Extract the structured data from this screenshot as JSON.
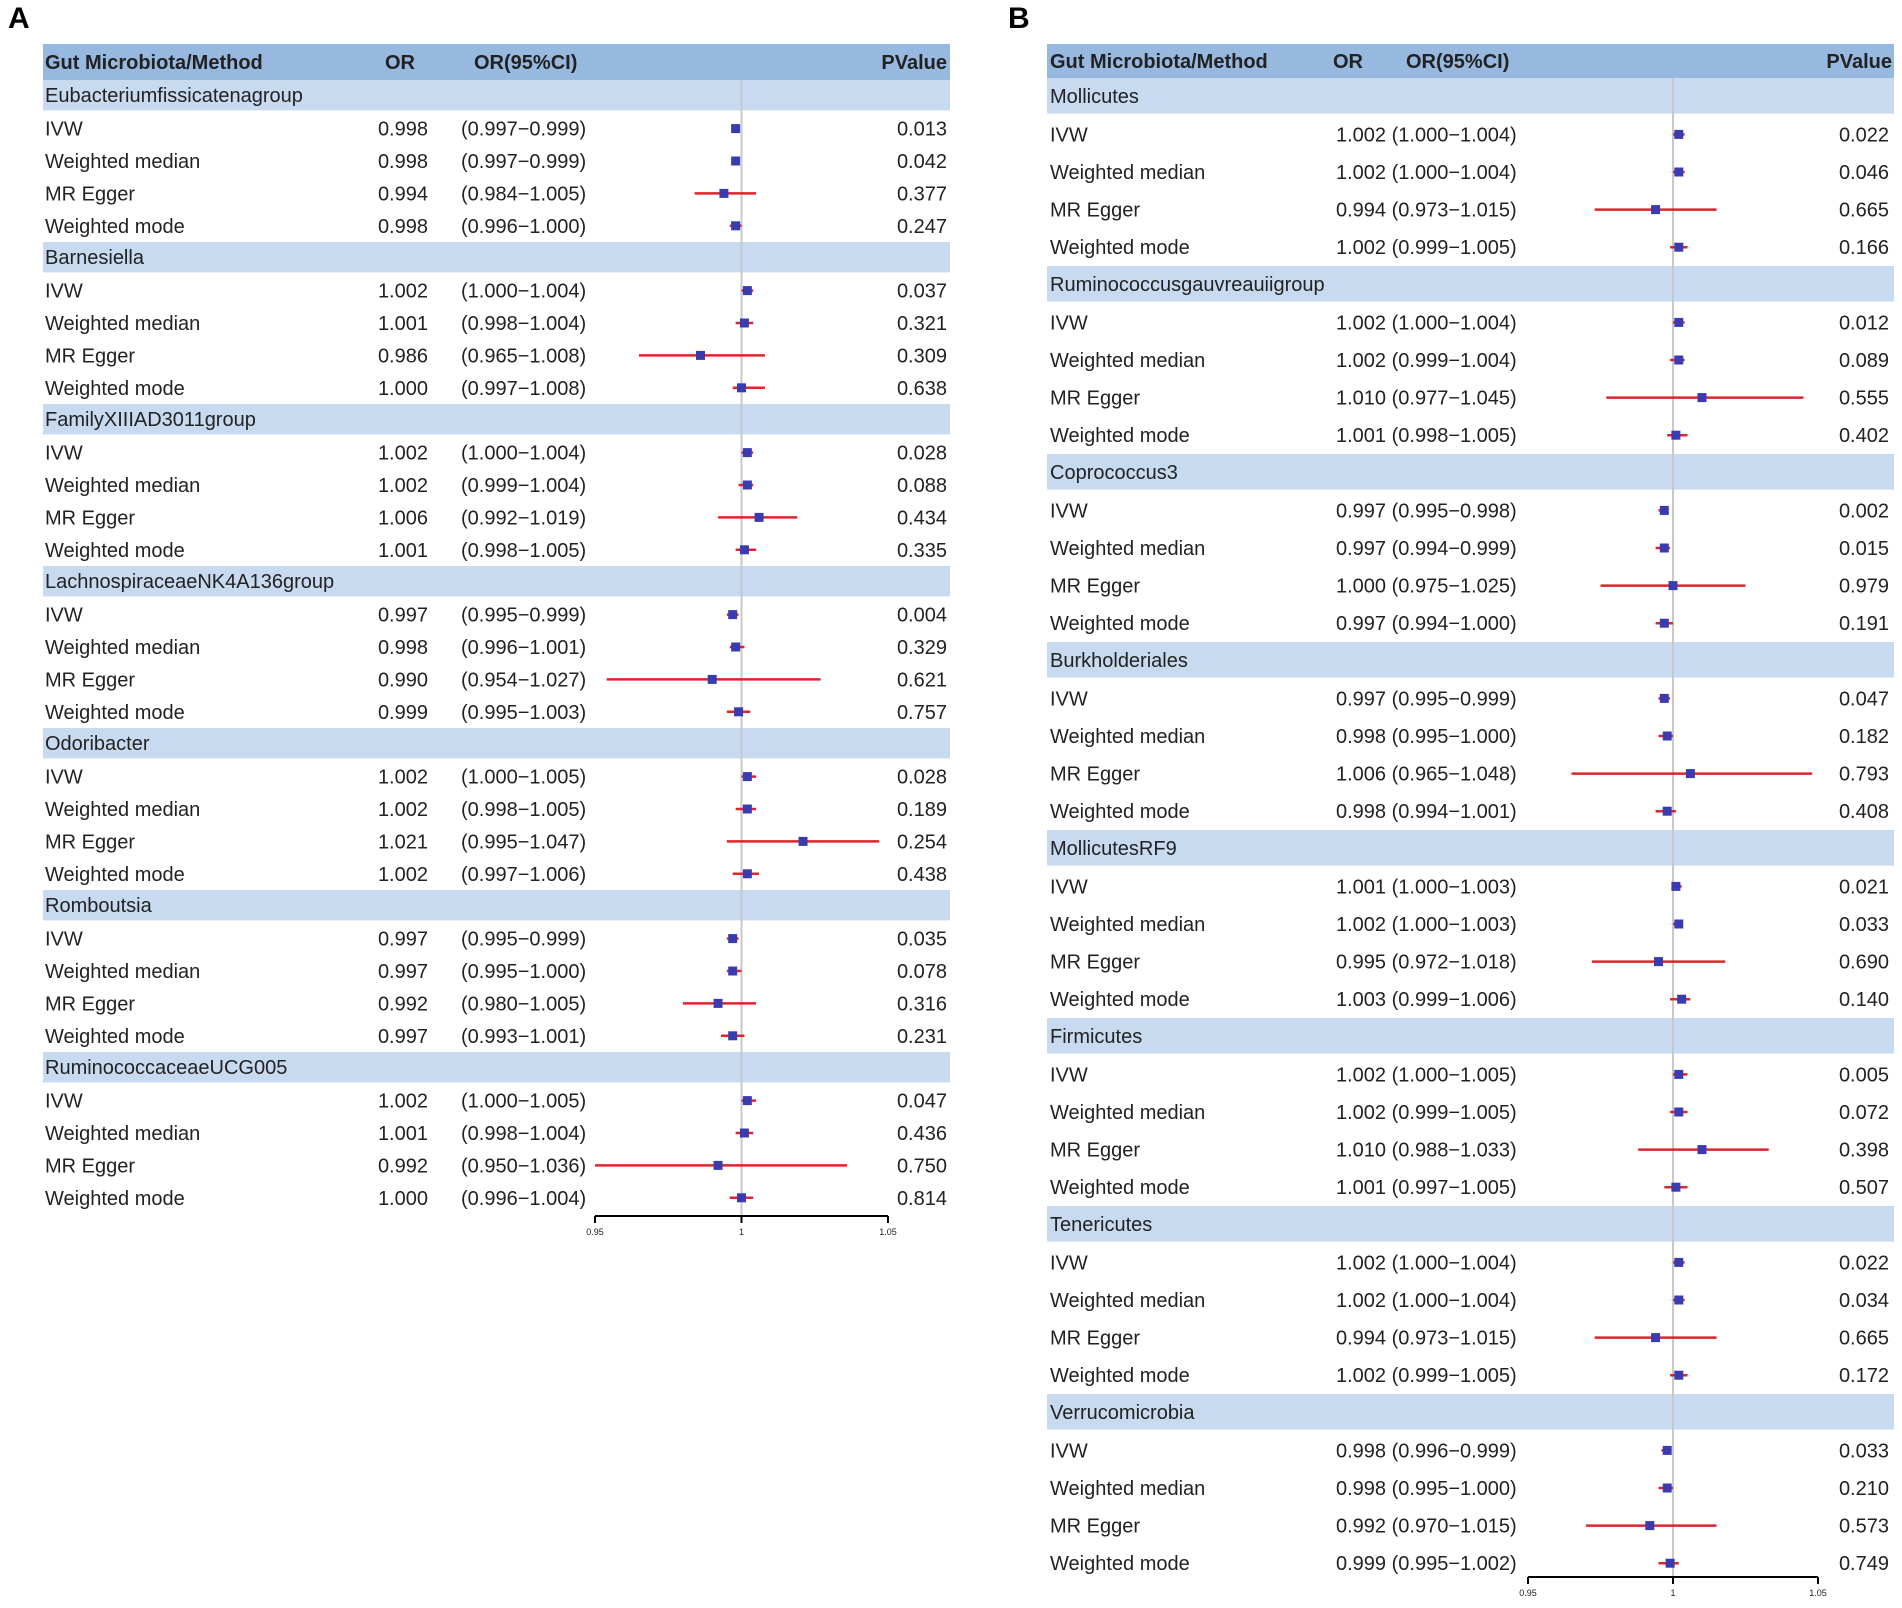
{
  "colors": {
    "header_bg": "#97b9e0",
    "group_bg": "#c8daf0",
    "ci_line": "#e0232c",
    "point": "#3b3bb0",
    "ref_line": "#c8c8c8",
    "axis": "#000000"
  },
  "chart_data": [
    {
      "type": "forest",
      "panel_label": "A",
      "columns": {
        "name": "Gut Microbiota/Method",
        "or": "OR",
        "ci": "OR(95%CI)",
        "p": "PValue"
      },
      "ci_style": "paren",
      "xlim": [
        0.95,
        1.05
      ],
      "ref_value": 1,
      "ticks": [
        {
          "value": 0.95,
          "label": "0.95"
        },
        {
          "value": 1,
          "label": "1"
        },
        {
          "value": 1.05,
          "label": "1.05"
        }
      ],
      "groups": [
        {
          "name": "Eubacteriumfissicatenagroup",
          "rows": [
            {
              "method": "IVW",
              "or": 0.998,
              "lo": 0.997,
              "hi": 0.999,
              "or_text": "0.998",
              "ci_text": "(0.997−0.999)",
              "p": "0.013"
            },
            {
              "method": "Weighted median",
              "or": 0.998,
              "lo": 0.997,
              "hi": 0.999,
              "or_text": "0.998",
              "ci_text": "(0.997−0.999)",
              "p": "0.042"
            },
            {
              "method": "MR Egger",
              "or": 0.994,
              "lo": 0.984,
              "hi": 1.005,
              "or_text": "0.994",
              "ci_text": "(0.984−1.005)",
              "p": "0.377"
            },
            {
              "method": "Weighted mode",
              "or": 0.998,
              "lo": 0.996,
              "hi": 1.0,
              "or_text": "0.998",
              "ci_text": "(0.996−1.000)",
              "p": "0.247"
            }
          ]
        },
        {
          "name": "Barnesiella",
          "rows": [
            {
              "method": "IVW",
              "or": 1.002,
              "lo": 1.0,
              "hi": 1.004,
              "or_text": "1.002",
              "ci_text": "(1.000−1.004)",
              "p": "0.037"
            },
            {
              "method": "Weighted median",
              "or": 1.001,
              "lo": 0.998,
              "hi": 1.004,
              "or_text": "1.001",
              "ci_text": "(0.998−1.004)",
              "p": "0.321"
            },
            {
              "method": "MR Egger",
              "or": 0.986,
              "lo": 0.965,
              "hi": 1.008,
              "or_text": "0.986",
              "ci_text": "(0.965−1.008)",
              "p": "0.309"
            },
            {
              "method": "Weighted mode",
              "or": 1.0,
              "lo": 0.997,
              "hi": 1.008,
              "or_text": "1.000",
              "ci_text": "(0.997−1.008)",
              "p": "0.638"
            }
          ]
        },
        {
          "name": "FamilyXIIIAD3011group",
          "rows": [
            {
              "method": "IVW",
              "or": 1.002,
              "lo": 1.0,
              "hi": 1.004,
              "or_text": "1.002",
              "ci_text": "(1.000−1.004)",
              "p": "0.028"
            },
            {
              "method": "Weighted median",
              "or": 1.002,
              "lo": 0.999,
              "hi": 1.004,
              "or_text": "1.002",
              "ci_text": "(0.999−1.004)",
              "p": "0.088"
            },
            {
              "method": "MR Egger",
              "or": 1.006,
              "lo": 0.992,
              "hi": 1.019,
              "or_text": "1.006",
              "ci_text": "(0.992−1.019)",
              "p": "0.434"
            },
            {
              "method": "Weighted mode",
              "or": 1.001,
              "lo": 0.998,
              "hi": 1.005,
              "or_text": "1.001",
              "ci_text": "(0.998−1.005)",
              "p": "0.335"
            }
          ]
        },
        {
          "name": "LachnospiraceaeNK4A136group",
          "rows": [
            {
              "method": "IVW",
              "or": 0.997,
              "lo": 0.995,
              "hi": 0.999,
              "or_text": "0.997",
              "ci_text": "(0.995−0.999)",
              "p": "0.004"
            },
            {
              "method": "Weighted median",
              "or": 0.998,
              "lo": 0.996,
              "hi": 1.001,
              "or_text": "0.998",
              "ci_text": "(0.996−1.001)",
              "p": "0.329"
            },
            {
              "method": "MR Egger",
              "or": 0.99,
              "lo": 0.954,
              "hi": 1.027,
              "or_text": "0.990",
              "ci_text": "(0.954−1.027)",
              "p": "0.621"
            },
            {
              "method": "Weighted mode",
              "or": 0.999,
              "lo": 0.995,
              "hi": 1.003,
              "or_text": "0.999",
              "ci_text": "(0.995−1.003)",
              "p": "0.757"
            }
          ]
        },
        {
          "name": "Odoribacter",
          "rows": [
            {
              "method": "IVW",
              "or": 1.002,
              "lo": 1.0,
              "hi": 1.005,
              "or_text": "1.002",
              "ci_text": "(1.000−1.005)",
              "p": "0.028"
            },
            {
              "method": "Weighted median",
              "or": 1.002,
              "lo": 0.998,
              "hi": 1.005,
              "or_text": "1.002",
              "ci_text": "(0.998−1.005)",
              "p": "0.189"
            },
            {
              "method": "MR Egger",
              "or": 1.021,
              "lo": 0.995,
              "hi": 1.047,
              "or_text": "1.021",
              "ci_text": "(0.995−1.047)",
              "p": "0.254"
            },
            {
              "method": "Weighted mode",
              "or": 1.002,
              "lo": 0.997,
              "hi": 1.006,
              "or_text": "1.002",
              "ci_text": "(0.997−1.006)",
              "p": "0.438"
            }
          ]
        },
        {
          "name": "Romboutsia",
          "rows": [
            {
              "method": "IVW",
              "or": 0.997,
              "lo": 0.995,
              "hi": 0.999,
              "or_text": "0.997",
              "ci_text": "(0.995−0.999)",
              "p": "0.035"
            },
            {
              "method": "Weighted median",
              "or": 0.997,
              "lo": 0.995,
              "hi": 1.0,
              "or_text": "0.997",
              "ci_text": "(0.995−1.000)",
              "p": "0.078"
            },
            {
              "method": "MR Egger",
              "or": 0.992,
              "lo": 0.98,
              "hi": 1.005,
              "or_text": "0.992",
              "ci_text": "(0.980−1.005)",
              "p": "0.316"
            },
            {
              "method": "Weighted mode",
              "or": 0.997,
              "lo": 0.993,
              "hi": 1.001,
              "or_text": "0.997",
              "ci_text": "(0.993−1.001)",
              "p": "0.231"
            }
          ]
        },
        {
          "name": "RuminococcaceaeUCG005",
          "rows": [
            {
              "method": "IVW",
              "or": 1.002,
              "lo": 1.0,
              "hi": 1.005,
              "or_text": "1.002",
              "ci_text": "(1.000−1.005)",
              "p": "0.047"
            },
            {
              "method": "Weighted median",
              "or": 1.001,
              "lo": 0.998,
              "hi": 1.004,
              "or_text": "1.001",
              "ci_text": "(0.998−1.004)",
              "p": "0.436"
            },
            {
              "method": "MR Egger",
              "or": 0.992,
              "lo": 0.95,
              "hi": 1.036,
              "or_text": "0.992",
              "ci_text": "(0.950−1.036)",
              "p": "0.750"
            },
            {
              "method": "Weighted mode",
              "or": 1.0,
              "lo": 0.996,
              "hi": 1.004,
              "or_text": "1.000",
              "ci_text": "(0.996−1.004)",
              "p": "0.814"
            }
          ]
        }
      ]
    },
    {
      "type": "forest",
      "panel_label": "B",
      "columns": {
        "name": "Gut Microbiota/Method",
        "or": "OR",
        "ci": "OR(95%CI)",
        "p": "PValue"
      },
      "ci_style": "combined",
      "xlim": [
        0.95,
        1.05
      ],
      "ref_value": 1,
      "ticks": [
        {
          "value": 0.95,
          "label": "0.95"
        },
        {
          "value": 1,
          "label": "1"
        },
        {
          "value": 1.05,
          "label": "1.05"
        }
      ],
      "groups": [
        {
          "name": "Mollicutes",
          "rows": [
            {
              "method": "IVW",
              "or": 1.002,
              "lo": 1.0,
              "hi": 1.004,
              "or_text": "1.002 (1.000−1.004)",
              "p": "0.022"
            },
            {
              "method": "Weighted median",
              "or": 1.002,
              "lo": 1.0,
              "hi": 1.004,
              "or_text": "1.002 (1.000−1.004)",
              "p": "0.046"
            },
            {
              "method": "MR Egger",
              "or": 0.994,
              "lo": 0.973,
              "hi": 1.015,
              "or_text": "0.994 (0.973−1.015)",
              "p": "0.665"
            },
            {
              "method": "Weighted mode",
              "or": 1.002,
              "lo": 0.999,
              "hi": 1.005,
              "or_text": "1.002 (0.999−1.005)",
              "p": "0.166"
            }
          ]
        },
        {
          "name": "Ruminococcusgauvreauiigroup",
          "rows": [
            {
              "method": "IVW",
              "or": 1.002,
              "lo": 1.0,
              "hi": 1.004,
              "or_text": "1.002 (1.000−1.004)",
              "p": "0.012"
            },
            {
              "method": "Weighted median",
              "or": 1.002,
              "lo": 0.999,
              "hi": 1.004,
              "or_text": "1.002 (0.999−1.004)",
              "p": "0.089"
            },
            {
              "method": "MR Egger",
              "or": 1.01,
              "lo": 0.977,
              "hi": 1.045,
              "or_text": "1.010 (0.977−1.045)",
              "p": "0.555"
            },
            {
              "method": "Weighted mode",
              "or": 1.001,
              "lo": 0.998,
              "hi": 1.005,
              "or_text": "1.001 (0.998−1.005)",
              "p": "0.402"
            }
          ]
        },
        {
          "name": "Coprococcus3",
          "rows": [
            {
              "method": "IVW",
              "or": 0.997,
              "lo": 0.995,
              "hi": 0.998,
              "or_text": "0.997 (0.995−0.998)",
              "p": "0.002"
            },
            {
              "method": "Weighted median",
              "or": 0.997,
              "lo": 0.994,
              "hi": 0.999,
              "or_text": "0.997 (0.994−0.999)",
              "p": "0.015"
            },
            {
              "method": "MR Egger",
              "or": 1.0,
              "lo": 0.975,
              "hi": 1.025,
              "or_text": "1.000 (0.975−1.025)",
              "p": "0.979"
            },
            {
              "method": "Weighted mode",
              "or": 0.997,
              "lo": 0.994,
              "hi": 1.0,
              "or_text": "0.997 (0.994−1.000)",
              "p": "0.191"
            }
          ]
        },
        {
          "name": "Burkholderiales",
          "rows": [
            {
              "method": "IVW",
              "or": 0.997,
              "lo": 0.995,
              "hi": 0.999,
              "or_text": "0.997 (0.995−0.999)",
              "p": "0.047"
            },
            {
              "method": "Weighted median",
              "or": 0.998,
              "lo": 0.995,
              "hi": 1.0,
              "or_text": "0.998 (0.995−1.000)",
              "p": "0.182"
            },
            {
              "method": "MR Egger",
              "or": 1.006,
              "lo": 0.965,
              "hi": 1.048,
              "or_text": "1.006 (0.965−1.048)",
              "p": "0.793"
            },
            {
              "method": "Weighted mode",
              "or": 0.998,
              "lo": 0.994,
              "hi": 1.001,
              "or_text": "0.998 (0.994−1.001)",
              "p": "0.408"
            }
          ]
        },
        {
          "name": "MollicutesRF9",
          "rows": [
            {
              "method": "IVW",
              "or": 1.001,
              "lo": 1.0,
              "hi": 1.003,
              "or_text": "1.001 (1.000−1.003)",
              "p": "0.021"
            },
            {
              "method": "Weighted median",
              "or": 1.002,
              "lo": 1.0,
              "hi": 1.003,
              "or_text": "1.002 (1.000−1.003)",
              "p": "0.033"
            },
            {
              "method": "MR Egger",
              "or": 0.995,
              "lo": 0.972,
              "hi": 1.018,
              "or_text": "0.995 (0.972−1.018)",
              "p": "0.690"
            },
            {
              "method": "Weighted mode",
              "or": 1.003,
              "lo": 0.999,
              "hi": 1.006,
              "or_text": "1.003 (0.999−1.006)",
              "p": "0.140"
            }
          ]
        },
        {
          "name": "Firmicutes",
          "rows": [
            {
              "method": "IVW",
              "or": 1.002,
              "lo": 1.0,
              "hi": 1.005,
              "or_text": "1.002 (1.000−1.005)",
              "p": "0.005"
            },
            {
              "method": "Weighted median",
              "or": 1.002,
              "lo": 0.999,
              "hi": 1.005,
              "or_text": "1.002 (0.999−1.005)",
              "p": "0.072"
            },
            {
              "method": "MR Egger",
              "or": 1.01,
              "lo": 0.988,
              "hi": 1.033,
              "or_text": "1.010 (0.988−1.033)",
              "p": "0.398"
            },
            {
              "method": "Weighted mode",
              "or": 1.001,
              "lo": 0.997,
              "hi": 1.005,
              "or_text": "1.001 (0.997−1.005)",
              "p": "0.507"
            }
          ]
        },
        {
          "name": "Tenericutes",
          "rows": [
            {
              "method": "IVW",
              "or": 1.002,
              "lo": 1.0,
              "hi": 1.004,
              "or_text": "1.002 (1.000−1.004)",
              "p": "0.022"
            },
            {
              "method": "Weighted median",
              "or": 1.002,
              "lo": 1.0,
              "hi": 1.004,
              "or_text": "1.002 (1.000−1.004)",
              "p": "0.034"
            },
            {
              "method": "MR Egger",
              "or": 0.994,
              "lo": 0.973,
              "hi": 1.015,
              "or_text": "0.994 (0.973−1.015)",
              "p": "0.665"
            },
            {
              "method": "Weighted mode",
              "or": 1.002,
              "lo": 0.999,
              "hi": 1.005,
              "or_text": "1.002 (0.999−1.005)",
              "p": "0.172"
            }
          ]
        },
        {
          "name": "Verrucomicrobia",
          "rows": [
            {
              "method": "IVW",
              "or": 0.998,
              "lo": 0.996,
              "hi": 0.999,
              "or_text": "0.998 (0.996−0.999)",
              "p": "0.033"
            },
            {
              "method": "Weighted median",
              "or": 0.998,
              "lo": 0.995,
              "hi": 1.0,
              "or_text": "0.998 (0.995−1.000)",
              "p": "0.210"
            },
            {
              "method": "MR Egger",
              "or": 0.992,
              "lo": 0.97,
              "hi": 1.015,
              "or_text": "0.992 (0.970−1.015)",
              "p": "0.573"
            },
            {
              "method": "Weighted mode",
              "or": 0.999,
              "lo": 0.995,
              "hi": 1.002,
              "or_text": "0.999 (0.995−1.002)",
              "p": "0.749"
            }
          ]
        }
      ]
    }
  ]
}
